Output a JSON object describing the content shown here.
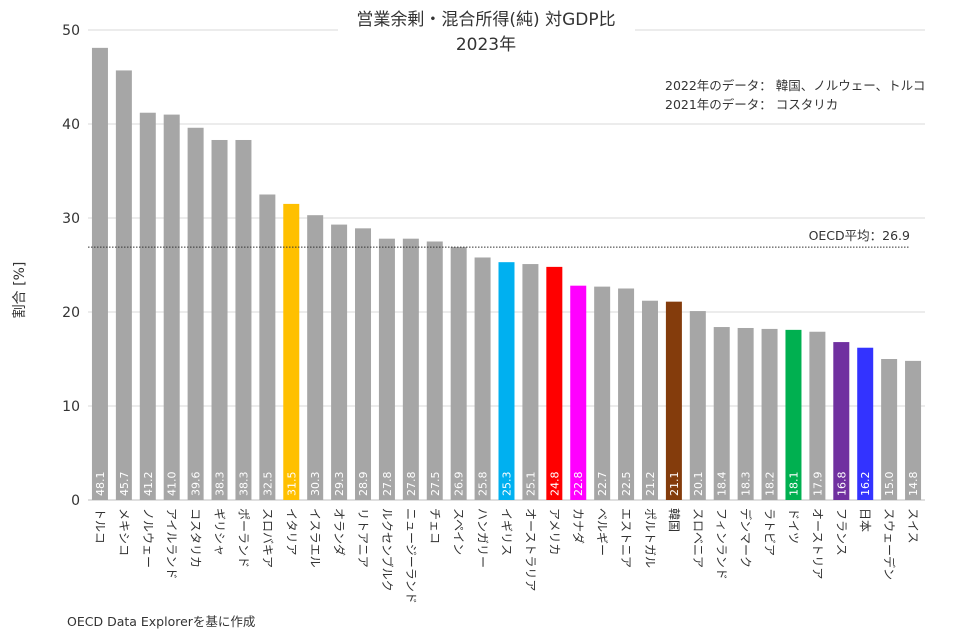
{
  "chart_data": {
    "type": "bar",
    "title": "営業余剰・混合所得(純) 対GDP比",
    "subtitle": "2023年",
    "ylabel": "割合 [%]",
    "xlabel": "",
    "ylim": [
      0,
      50
    ],
    "yticks": [
      "0",
      "10",
      "20",
      "30",
      "40",
      "50"
    ],
    "grid": true,
    "notes": [
      "2022年のデータ： 韓国、ノルウェー、トルコ",
      "2021年のデータ： コスタリカ"
    ],
    "reference_line": {
      "label": "OECD平均：26.9",
      "value": 26.9
    },
    "default_color": "#a6a6a6",
    "categories": [
      "トルコ",
      "メキシコ",
      "ノルウェー",
      "アイルランド",
      "コスタリカ",
      "ギリシャ",
      "ポーランド",
      "スロバキア",
      "イタリア",
      "イスラエル",
      "オランダ",
      "リトアニア",
      "ルクセンブルク",
      "ニュージーランド",
      "チェコ",
      "スペイン",
      "ハンガリー",
      "イギリス",
      "オーストラリア",
      "アメリカ",
      "カナダ",
      "ベルギー",
      "エストニア",
      "ポルトガル",
      "韓国",
      "スロベニア",
      "フィンランド",
      "デンマーク",
      "ラトビア",
      "ドイツ",
      "オーストリア",
      "フランス",
      "日本",
      "スウェーデン",
      "スイス"
    ],
    "values": [
      48.1,
      45.7,
      41.2,
      41.0,
      39.6,
      38.3,
      38.3,
      32.5,
      31.5,
      30.3,
      29.3,
      28.9,
      27.8,
      27.8,
      27.5,
      26.9,
      25.8,
      25.3,
      25.1,
      24.8,
      22.8,
      22.7,
      22.5,
      21.2,
      21.1,
      20.1,
      18.4,
      18.3,
      18.2,
      18.1,
      17.9,
      16.8,
      16.2,
      15.0,
      14.8
    ],
    "value_labels": [
      "48.1",
      "45.7",
      "41.2",
      "41.0",
      "39.6",
      "38.3",
      "38.3",
      "32.5",
      "31.5",
      "30.3",
      "29.3",
      "28.9",
      "27.8",
      "27.8",
      "27.5",
      "26.9",
      "25.8",
      "25.3",
      "25.1",
      "24.8",
      "22.8",
      "22.7",
      "22.5",
      "21.2",
      "21.1",
      "20.1",
      "18.4",
      "18.3",
      "18.2",
      "18.1",
      "17.9",
      "16.8",
      "16.2",
      "15.0",
      "14.8"
    ],
    "highlight_colors": {
      "イタリア": "#ffc000",
      "イギリス": "#00b0f0",
      "アメリカ": "#ff0000",
      "カナダ": "#ff00ff",
      "韓国": "#843c0c",
      "ドイツ": "#00b050",
      "フランス": "#7030a0",
      "日本": "#3333ff"
    }
  },
  "source": "OECD Data Explorerを基に作成"
}
